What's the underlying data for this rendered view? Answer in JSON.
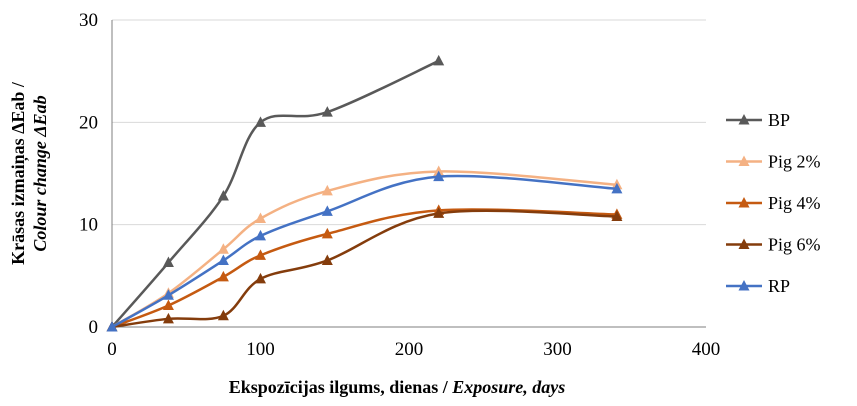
{
  "chart_data": {
    "type": "line",
    "smoothed": true,
    "x_axis": {
      "title_parts": [
        {
          "text": "Ekspozīcijas ilgums, dienas / ",
          "italic": false
        },
        {
          "text": "Exposure, days",
          "italic": true
        }
      ],
      "range": [
        0,
        400
      ],
      "ticks": [
        0,
        100,
        200,
        300,
        400
      ],
      "tick_labels": [
        "0",
        "100",
        "200",
        "300",
        "400"
      ]
    },
    "y_axis": {
      "title_line1": "Krāsas izmaiņas ΔEab /",
      "title_line2": "Colour change ΔEab",
      "range": [
        0,
        30
      ],
      "ticks": [
        0,
        10,
        20,
        30
      ],
      "tick_labels": [
        "0",
        "10",
        "20",
        "30"
      ]
    },
    "grid": "horizontal",
    "legend_position": "right",
    "marker": "triangle",
    "series": [
      {
        "name": "BP",
        "color": "#595959",
        "x": [
          0,
          38,
          75,
          100,
          145,
          220
        ],
        "y": [
          0,
          6.3,
          12.8,
          20.0,
          21.0,
          26.0
        ]
      },
      {
        "name": "Pig 2%",
        "color": "#F4B183",
        "x": [
          0,
          38,
          75,
          100,
          145,
          220,
          340
        ],
        "y": [
          0,
          3.3,
          7.6,
          10.6,
          13.3,
          15.2,
          13.9
        ]
      },
      {
        "name": "Pig 4%",
        "color": "#C55A11",
        "x": [
          0,
          38,
          75,
          100,
          145,
          220,
          340
        ],
        "y": [
          0,
          2.1,
          4.9,
          7.0,
          9.1,
          11.4,
          11.0
        ]
      },
      {
        "name": "Pig 6%",
        "color": "#843C0C",
        "x": [
          0,
          38,
          75,
          100,
          145,
          220,
          340
        ],
        "y": [
          0,
          0.8,
          1.1,
          4.7,
          6.5,
          11.1,
          10.8
        ]
      },
      {
        "name": "RP",
        "color": "#4472C4",
        "x": [
          0,
          38,
          75,
          100,
          145,
          220,
          340
        ],
        "y": [
          0,
          3.1,
          6.5,
          8.9,
          11.3,
          14.7,
          13.5
        ]
      }
    ]
  }
}
